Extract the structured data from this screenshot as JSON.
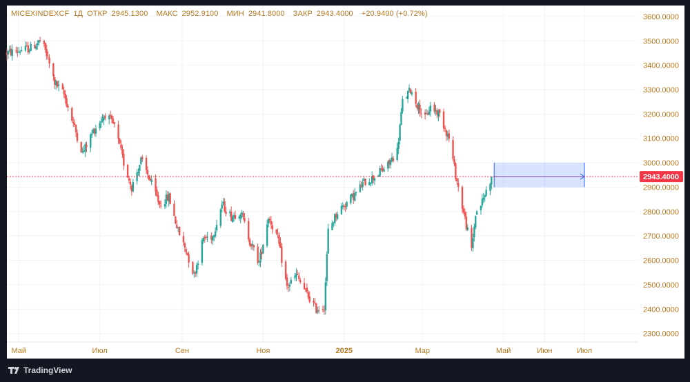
{
  "header": {
    "symbol": "MICEXINDEXCF",
    "interval": "1Д",
    "open_label": "ОТКР",
    "open": "2945.1300",
    "high_label": "МАКС",
    "high": "2952.9100",
    "low_label": "МИН",
    "low": "2941.8000",
    "close_label": "ЗАКР",
    "close": "2943.4000",
    "change": "+20.9400 (+0.72%)"
  },
  "brand": {
    "name": "TradingView",
    "icon": "tradingview-logo-icon"
  },
  "colors": {
    "up": "#26a69a",
    "down": "#ef5350",
    "accent": "#b7791f",
    "price_tag": "#f23645",
    "projection": "#2962ff"
  },
  "chart_data": {
    "type": "candlestick",
    "symbol": "MICEXINDEXCF",
    "interval": "1D",
    "last_price": 2943.4,
    "last_price_label": "2943.4000",
    "y_ticks": [
      "3600.0000",
      "3500.0000",
      "3400.0000",
      "3300.0000",
      "3200.0000",
      "3100.0000",
      "3000.0000",
      "2900.0000",
      "2800.0000",
      "2700.0000",
      "2600.0000",
      "2500.0000",
      "2400.0000",
      "2300.0000"
    ],
    "y_tick_values": [
      3600,
      3500,
      3400,
      3300,
      3200,
      3100,
      3000,
      2900,
      2800,
      2700,
      2600,
      2500,
      2400,
      2300
    ],
    "ylim": [
      2265,
      3645
    ],
    "x_ticks": [
      {
        "label": "Май",
        "date": "2024-05-01",
        "bold": false
      },
      {
        "label": "Июл",
        "date": "2024-07-01",
        "bold": false
      },
      {
        "label": "Сен",
        "date": "2024-09-01",
        "bold": false
      },
      {
        "label": "Ноя",
        "date": "2024-11-01",
        "bold": false
      },
      {
        "label": "2025",
        "date": "2025-01-01",
        "bold": true
      },
      {
        "label": "Мар",
        "date": "2025-03-01",
        "bold": false
      },
      {
        "label": "Май",
        "date": "2025-05-01",
        "bold": false
      },
      {
        "label": "Июн",
        "date": "2025-06-01",
        "bold": false
      },
      {
        "label": "Июл",
        "date": "2025-07-01",
        "bold": false
      }
    ],
    "xlim": [
      "2024-04-22",
      "2025-08-10"
    ],
    "trend": [
      [
        "2024-04-22",
        3450
      ],
      [
        "2024-05-10",
        3470
      ],
      [
        "2024-05-17",
        3500
      ],
      [
        "2024-05-21",
        3460
      ],
      [
        "2024-05-28",
        3330
      ],
      [
        "2024-06-04",
        3280
      ],
      [
        "2024-06-11",
        3160
      ],
      [
        "2024-06-18",
        3040
      ],
      [
        "2024-06-26",
        3130
      ],
      [
        "2024-07-05",
        3200
      ],
      [
        "2024-07-12",
        3150
      ],
      [
        "2024-07-19",
        3000
      ],
      [
        "2024-07-25",
        2900
      ],
      [
        "2024-08-01",
        3010
      ],
      [
        "2024-08-07",
        2940
      ],
      [
        "2024-08-15",
        2830
      ],
      [
        "2024-08-22",
        2860
      ],
      [
        "2024-08-29",
        2720
      ],
      [
        "2024-09-04",
        2640
      ],
      [
        "2024-09-10",
        2540
      ],
      [
        "2024-09-17",
        2690
      ],
      [
        "2024-09-24",
        2700
      ],
      [
        "2024-10-01",
        2830
      ],
      [
        "2024-10-08",
        2780
      ],
      [
        "2024-10-15",
        2800
      ],
      [
        "2024-10-22",
        2680
      ],
      [
        "2024-10-29",
        2590
      ],
      [
        "2024-11-05",
        2780
      ],
      [
        "2024-11-12",
        2690
      ],
      [
        "2024-11-19",
        2490
      ],
      [
        "2024-11-26",
        2540
      ],
      [
        "2024-12-03",
        2470
      ],
      [
        "2024-12-11",
        2400
      ],
      [
        "2024-12-17",
        2410
      ],
      [
        "2024-12-20",
        2720
      ],
      [
        "2024-12-27",
        2800
      ],
      [
        "2025-01-09",
        2870
      ],
      [
        "2025-01-16",
        2920
      ],
      [
        "2025-01-23",
        2940
      ],
      [
        "2025-02-03",
        2990
      ],
      [
        "2025-02-10",
        3050
      ],
      [
        "2025-02-14",
        3250
      ],
      [
        "2025-02-20",
        3300
      ],
      [
        "2025-02-24",
        3250
      ],
      [
        "2025-03-03",
        3180
      ],
      [
        "2025-03-07",
        3230
      ],
      [
        "2025-03-14",
        3200
      ],
      [
        "2025-03-21",
        3100
      ],
      [
        "2025-03-26",
        2950
      ],
      [
        "2025-04-02",
        2770
      ],
      [
        "2025-04-07",
        2640
      ],
      [
        "2025-04-10",
        2790
      ],
      [
        "2025-04-15",
        2840
      ],
      [
        "2025-04-22",
        2943
      ]
    ],
    "projection": {
      "start_date": "2025-04-24",
      "end_date": "2025-07-01",
      "top": 3000,
      "bottom": 2900,
      "arrow_price": 2943.4
    }
  }
}
